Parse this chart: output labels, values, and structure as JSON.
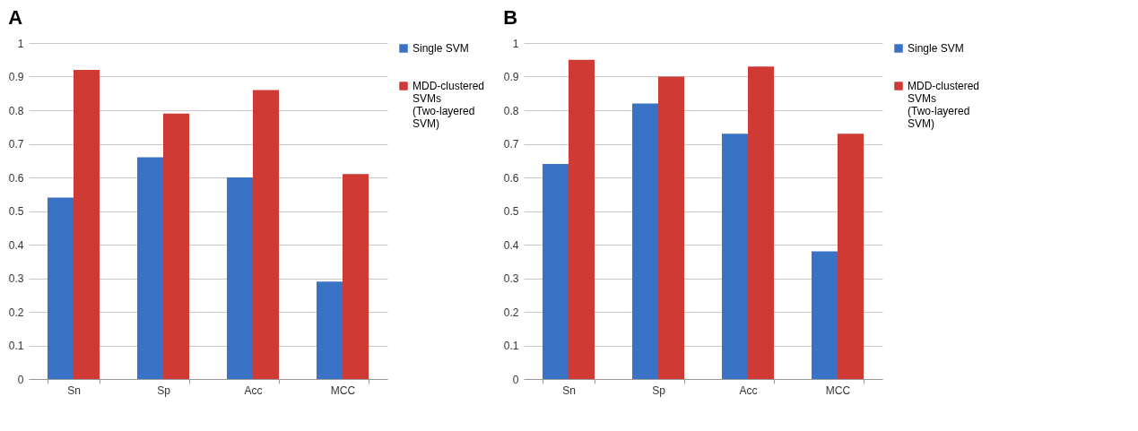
{
  "chart_data": [
    {
      "type": "bar",
      "title": "A",
      "categories": [
        "Sn",
        "Sp",
        "Acc",
        "MCC"
      ],
      "ylim": [
        0,
        1
      ],
      "yticks": [
        0,
        0.1,
        0.2,
        0.3,
        0.4,
        0.5,
        0.6,
        0.7,
        0.8,
        0.9,
        1
      ],
      "grid": "y",
      "legend": "right",
      "series": [
        {
          "name": "Single SVM",
          "color": "#3a73c6",
          "values": [
            0.54,
            0.66,
            0.6,
            0.29
          ]
        },
        {
          "name": "MDD-clustered SVMs (Two-layered SVM)",
          "color": "#d03a35",
          "values": [
            0.92,
            0.79,
            0.86,
            0.61
          ]
        }
      ]
    },
    {
      "type": "bar",
      "title": "B",
      "categories": [
        "Sn",
        "Sp",
        "Acc",
        "MCC"
      ],
      "ylim": [
        0,
        1
      ],
      "yticks": [
        0,
        0.1,
        0.2,
        0.3,
        0.4,
        0.5,
        0.6,
        0.7,
        0.8,
        0.9,
        1
      ],
      "grid": "y",
      "legend": "right",
      "series": [
        {
          "name": "Single SVM",
          "color": "#3a73c6",
          "values": [
            0.64,
            0.82,
            0.73,
            0.38
          ]
        },
        {
          "name": "MDD-clustered SVMs (Two-layered SVM)",
          "color": "#d03a35",
          "values": [
            0.95,
            0.9,
            0.93,
            0.73
          ]
        }
      ]
    }
  ]
}
